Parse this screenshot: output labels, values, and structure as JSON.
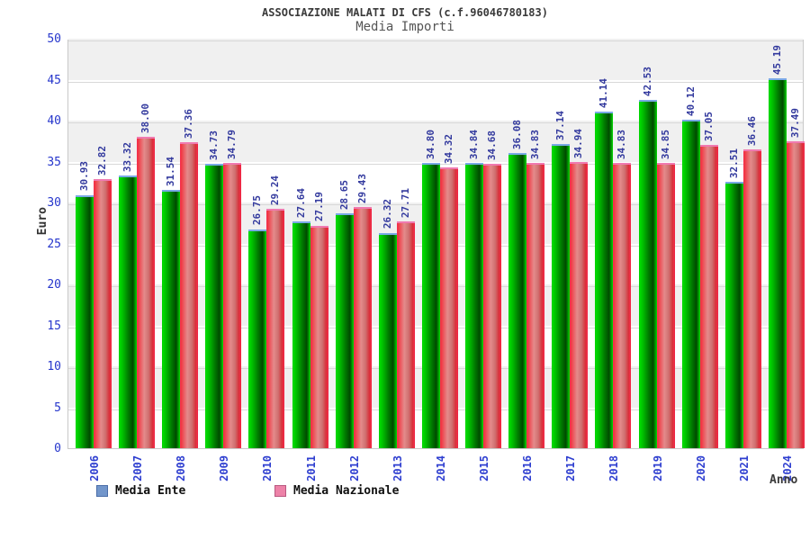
{
  "header": {
    "title": "ASSOCIAZIONE MALATI DI CFS (c.f.96046780183)",
    "subtitle": "Media Importi"
  },
  "axes": {
    "y_label": "Euro",
    "x_label": "Anno",
    "y_ticks": [
      0,
      5,
      10,
      15,
      20,
      25,
      30,
      35,
      40,
      45,
      50
    ]
  },
  "legend": {
    "items": [
      {
        "label": "Media Ente",
        "swatch": "#7296cb",
        "swatch_border": "#4a6da8"
      },
      {
        "label": "Media Nazionale",
        "swatch": "#ed82a8",
        "swatch_border": "#b85880"
      }
    ]
  },
  "colors": {
    "bar_ente_main": "#00b400",
    "bar_ente_cap": "#7aa9e6",
    "bar_nazionale_main": "#e84050",
    "bar_nazionale_cap": "#f07ab0",
    "value_label": "#333a9e",
    "tick_label": "#2636cc",
    "band_gray": "#f0f0f0",
    "band_white": "#ffffff",
    "gridline": "#d8d8d8"
  },
  "chart_data": {
    "type": "bar",
    "title": "ASSOCIAZIONE MALATI DI CFS (c.f.96046780183)",
    "subtitle": "Media Importi",
    "xlabel": "Anno",
    "ylabel": "Euro",
    "ylim": [
      0,
      50
    ],
    "y_step": 5,
    "grid": true,
    "legend_position": "bottom",
    "value_label_decimals": 2,
    "categories": [
      "2006",
      "2007",
      "2008",
      "2009",
      "2010",
      "2011",
      "2012",
      "2013",
      "2014",
      "2015",
      "2016",
      "2017",
      "2018",
      "2019",
      "2020",
      "2021",
      "2024"
    ],
    "series": [
      {
        "name": "Media Ente",
        "values": [
          30.93,
          33.32,
          31.54,
          34.73,
          26.75,
          27.64,
          28.65,
          26.32,
          34.8,
          34.84,
          36.08,
          37.14,
          41.14,
          42.53,
          40.12,
          32.51,
          45.19
        ]
      },
      {
        "name": "Media Nazionale",
        "values": [
          32.82,
          38.0,
          37.36,
          34.79,
          29.24,
          27.19,
          29.43,
          27.71,
          34.32,
          34.68,
          34.83,
          34.94,
          34.83,
          34.85,
          37.05,
          36.46,
          37.49
        ]
      }
    ]
  }
}
